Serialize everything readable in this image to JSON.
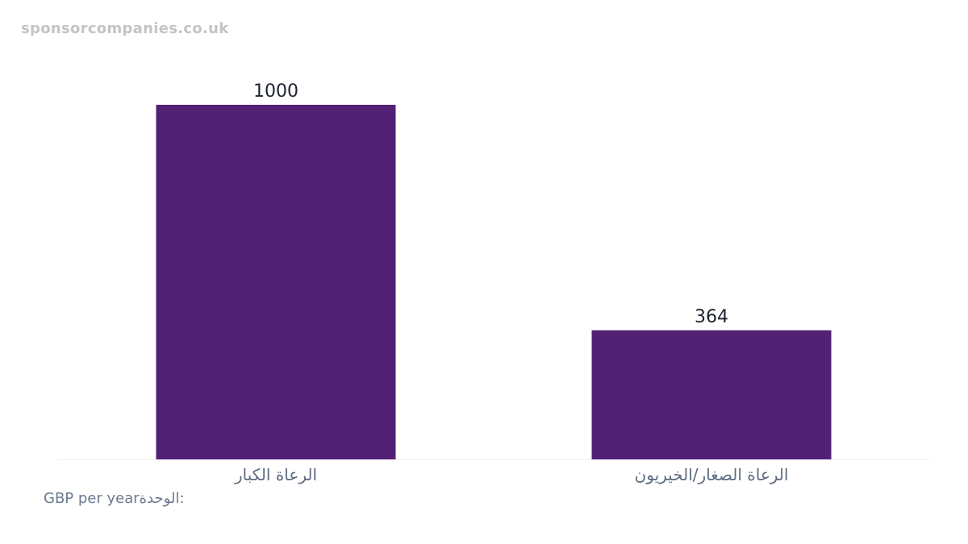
{
  "watermark": "sponsorcompanies.co.uk",
  "unit_label": "GBP per yearالوحدة:",
  "colors": {
    "bar": "#522176",
    "axis": "#eeeeee",
    "value_text": "#1c2230",
    "tick_text": "#5d6b82"
  },
  "chart_data": {
    "type": "bar",
    "categories": [
      "الرعاة الكبار",
      "الرعاة الصغار/الخيريون"
    ],
    "values": [
      1000,
      364
    ],
    "value_labels": [
      "1000",
      "364"
    ],
    "title": "",
    "xlabel": "",
    "ylabel": "",
    "ylim": [
      0,
      1000
    ],
    "grid": false,
    "legend": "none"
  }
}
